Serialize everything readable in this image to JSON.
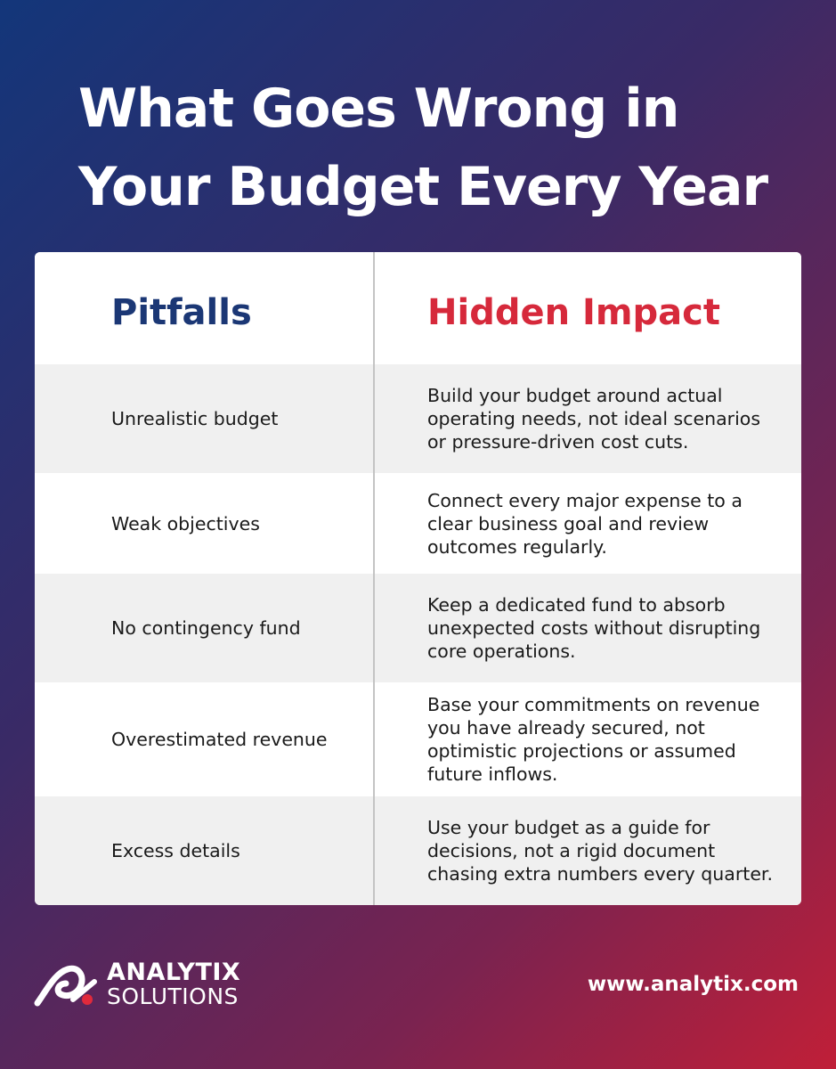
{
  "title": {
    "line1": "What Goes Wrong in",
    "line2": "Your Budget Every Year"
  },
  "table": {
    "header_left": "Pitfalls",
    "header_right": "Hidden Impact",
    "rows": [
      {
        "pitfall": "Unrealistic budget",
        "impact": "Build your budget around actual operating needs, not ideal scenarios or pressure-driven cost cuts."
      },
      {
        "pitfall": "Weak objectives",
        "impact": "Connect every major expense to a clear business goal and review outcomes regularly."
      },
      {
        "pitfall": "No contingency fund",
        "impact": "Keep a dedicated fund to absorb unexpected costs without disrupting core operations."
      },
      {
        "pitfall": "Overestimated revenue",
        "impact": "Base your commitments on revenue you have already secured, not optimistic projections or assumed future inflows."
      },
      {
        "pitfall": "Excess details",
        "impact": "Use your budget as a guide for decisions, not a rigid document chasing extra numbers every quarter."
      }
    ]
  },
  "footer": {
    "logo_line1": "ANALYTIX",
    "logo_line2": "SOLUTIONS",
    "logo_icon": "analytix-logo-icon",
    "url": "www.analytix.com"
  },
  "colors": {
    "header_left": "#1b3775",
    "header_right": "#d6293b",
    "logo_accent": "#e02a3c"
  }
}
